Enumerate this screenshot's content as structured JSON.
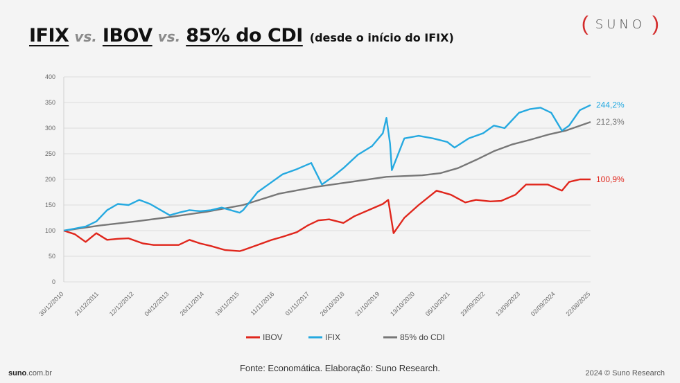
{
  "title": {
    "part1": "IFIX",
    "vs1": "vs.",
    "part2": "IBOV",
    "vs2": "vs.",
    "part3": "85% do CDI",
    "subtitle": "(desde o início do IFIX)"
  },
  "logo": {
    "open": "(",
    "word": "SUNO",
    "close": ")"
  },
  "source": "Fonte: Economática. Elaboração: Suno Research.",
  "footer": {
    "site": "suno",
    "site_domain": ".com.br",
    "copyright": "2024 © Suno Research"
  },
  "chart_data": {
    "type": "line",
    "title": "IFIX vs. IBOV vs. 85% do CDI",
    "ylim": [
      0,
      400
    ],
    "yticks": [
      0,
      50,
      100,
      150,
      200,
      250,
      300,
      350,
      400
    ],
    "grid": true,
    "legend_position": "bottom",
    "x_tick_labels": [
      "30/12/2010",
      "21/12/2011",
      "12/12/2012",
      "04/12/2013",
      "26/11/2014",
      "19/11/2015",
      "11/11/2016",
      "01/11/2017",
      "26/10/2018",
      "21/10/2019",
      "13/10/2020",
      "05/10/2021",
      "23/09/2022",
      "13/09/2023",
      "02/09/2024",
      "22/08/2025"
    ],
    "series": [
      {
        "name": "IBOV",
        "color": "#e0261c",
        "end_label": "100,9%",
        "x": [
          2010.99,
          2011.3,
          2011.6,
          2011.9,
          2012.2,
          2012.5,
          2012.8,
          2013.2,
          2013.5,
          2013.9,
          2014.2,
          2014.5,
          2014.8,
          2015.1,
          2015.5,
          2015.9,
          2016.0,
          2016.4,
          2016.8,
          2017.1,
          2017.5,
          2017.8,
          2018.1,
          2018.4,
          2018.8,
          2019.1,
          2019.5,
          2019.9,
          2020.05,
          2020.2,
          2020.5,
          2020.9,
          2021.4,
          2021.8,
          2022.2,
          2022.5,
          2022.9,
          2023.2,
          2023.6,
          2023.9,
          2024.2,
          2024.5,
          2024.9,
          2025.1,
          2025.4,
          2025.7
        ],
        "y": [
          100,
          93,
          78,
          95,
          82,
          84,
          85,
          75,
          72,
          72,
          72,
          82,
          75,
          70,
          62,
          60,
          62,
          72,
          82,
          88,
          97,
          110,
          120,
          122,
          115,
          128,
          140,
          152,
          160,
          95,
          125,
          150,
          178,
          170,
          155,
          160,
          157,
          158,
          170,
          190,
          190,
          190,
          178,
          195,
          200,
          200
        ]
      },
      {
        "name": "IFIX",
        "color": "#25a9e0",
        "end_label": "244,2%",
        "x": [
          2010.99,
          2011.3,
          2011.6,
          2011.9,
          2012.2,
          2012.5,
          2012.8,
          2013.1,
          2013.4,
          2013.7,
          2013.95,
          2014.2,
          2014.5,
          2014.8,
          2015.1,
          2015.4,
          2015.9,
          2016.0,
          2016.4,
          2016.8,
          2017.1,
          2017.5,
          2017.9,
          2018.2,
          2018.5,
          2018.8,
          2019.2,
          2019.6,
          2019.9,
          2020.0,
          2020.1,
          2020.15,
          2020.5,
          2020.9,
          2021.3,
          2021.7,
          2021.9,
          2022.3,
          2022.7,
          2023.0,
          2023.3,
          2023.7,
          2024.0,
          2024.3,
          2024.6,
          2024.9,
          2025.1,
          2025.4,
          2025.7
        ],
        "y": [
          100,
          104,
          108,
          118,
          140,
          152,
          150,
          160,
          152,
          140,
          130,
          135,
          140,
          138,
          140,
          145,
          135,
          140,
          175,
          195,
          210,
          220,
          232,
          190,
          205,
          222,
          248,
          265,
          290,
          320,
          270,
          218,
          280,
          285,
          280,
          273,
          262,
          280,
          290,
          305,
          300,
          330,
          337,
          340,
          330,
          295,
          305,
          335,
          345
        ]
      },
      {
        "name": "85% do CDI",
        "color": "#777777",
        "end_label": "212,3%",
        "x": [
          2010.99,
          2012.0,
          2013.0,
          2014.0,
          2015.0,
          2016.0,
          2017.0,
          2018.0,
          2019.0,
          2020.0,
          2021.0,
          2021.5,
          2022.0,
          2022.5,
          2023.0,
          2023.5,
          2024.0,
          2024.5,
          2025.0,
          2025.7
        ],
        "y": [
          100,
          110,
          118,
          127,
          137,
          150,
          172,
          185,
          195,
          205,
          208,
          212,
          222,
          238,
          255,
          268,
          277,
          287,
          295,
          312
        ]
      }
    ]
  }
}
